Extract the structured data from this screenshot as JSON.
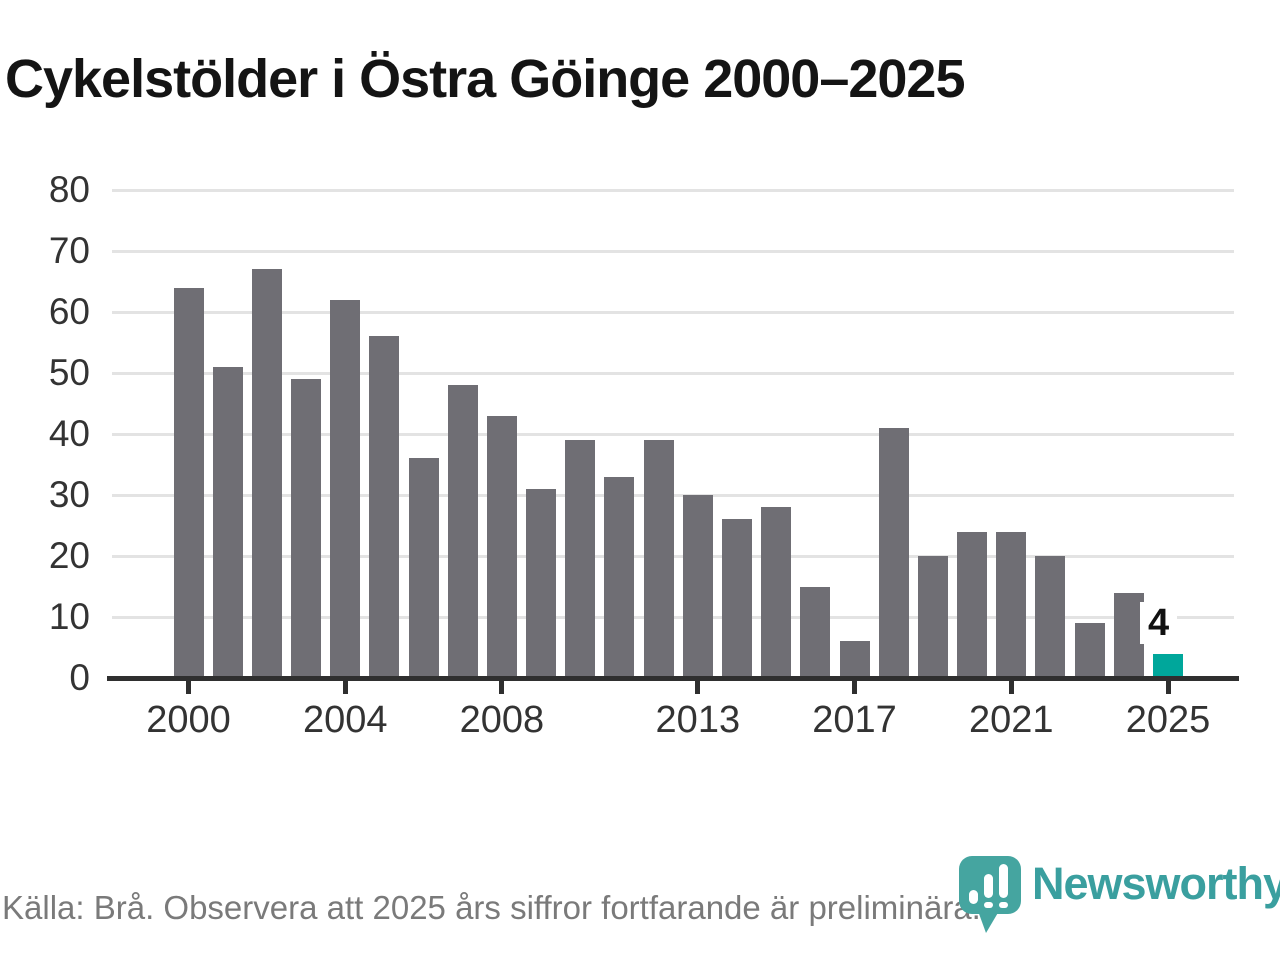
{
  "title": "Cykelstölder i Östra Göinge 2000–2025",
  "chart_data": {
    "type": "bar",
    "title": "Cykelstölder i Östra Göinge 2000–2025",
    "x": [
      2000,
      2001,
      2002,
      2003,
      2004,
      2005,
      2006,
      2007,
      2008,
      2009,
      2010,
      2011,
      2012,
      2013,
      2014,
      2015,
      2016,
      2017,
      2018,
      2019,
      2020,
      2021,
      2022,
      2023,
      2024,
      2025
    ],
    "values": [
      64,
      51,
      67,
      49,
      62,
      56,
      36,
      48,
      43,
      31,
      39,
      33,
      39,
      30,
      26,
      28,
      15,
      6,
      41,
      20,
      24,
      24,
      20,
      9,
      14,
      4
    ],
    "yticks": [
      0,
      10,
      20,
      30,
      40,
      50,
      60,
      70,
      80
    ],
    "ylim": [
      0,
      80
    ],
    "xticks": [
      2000,
      2004,
      2008,
      2013,
      2017,
      2021,
      2025
    ],
    "grid": true,
    "legend": "none",
    "highlight": {
      "year": 2025,
      "value": 4,
      "label": "4"
    }
  },
  "colors": {
    "bar": "#6f6e74",
    "highlight_bar": "#00a79b",
    "gridline": "#e3e3e3",
    "axis": "#2f2f2f",
    "tick_text": "#333333",
    "title_text": "#141414",
    "footer_text": "#7a7a7a",
    "logo_icon": "#45a5a0",
    "logo_text": "#3a9f9f"
  },
  "footer": {
    "source": "Källa: Brå. Observera att 2025 års siffror fortfarande är preliminära.",
    "brand": "Newsworthy"
  }
}
